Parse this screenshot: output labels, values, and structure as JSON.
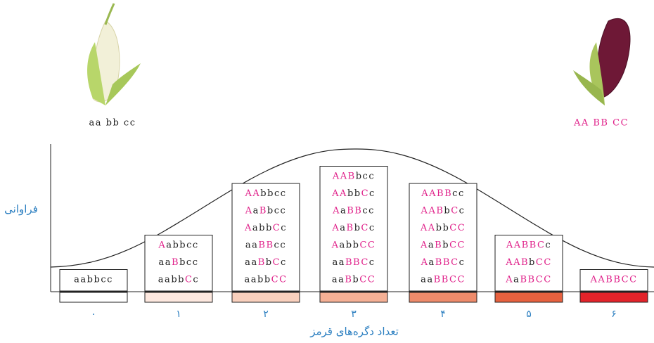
{
  "corn_labels": {
    "white": "aa bb cc",
    "red": "AA BB CC"
  },
  "y_axis_label": "فراوانی",
  "x_axis_label": "تعداد دگره‌های قرمز",
  "columns": [
    {
      "label": "۰",
      "genotypes": [
        "aabbcc"
      ]
    },
    {
      "label": "۱",
      "genotypes": [
        "Aabbcc",
        "aaBbcc",
        "aabbCc"
      ]
    },
    {
      "label": "۲",
      "genotypes": [
        "AAbbcc",
        "AaBbcc",
        "AabbCc",
        "aaBBcc",
        "aaBbCc",
        "aabbCC"
      ]
    },
    {
      "label": "۳",
      "genotypes": [
        "AABbcc",
        "AAbbCc",
        "AaBBcc",
        "AaBbCc",
        "AabbCC",
        "aaBBCc",
        "aaBbCC"
      ]
    },
    {
      "label": "۴",
      "genotypes": [
        "AABBcc",
        "AABbCc",
        "AAbbCC",
        "AaBbCC",
        "AaBBCc",
        "aaBBCC"
      ]
    },
    {
      "label": "۵",
      "genotypes": [
        "AABBCc",
        "AABbCC",
        "AaBBCC"
      ]
    },
    {
      "label": "۶",
      "genotypes": [
        "AABBCC"
      ]
    }
  ]
}
